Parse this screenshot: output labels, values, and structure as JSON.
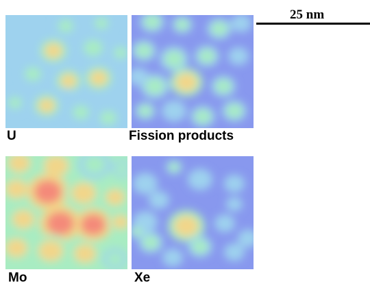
{
  "scale_bar": {
    "label": "25 nm"
  },
  "panels": [
    {
      "label": "U",
      "name": "u-map"
    },
    {
      "label": "Fission products",
      "name": "fission-products-map"
    },
    {
      "label": "Mo",
      "name": "mo-map"
    },
    {
      "label": "Xe",
      "name": "xe-map"
    }
  ],
  "colormap": [
    "#8898ee",
    "#9ed2ee",
    "#a8ecc2",
    "#f2d68a",
    "#f48a7a"
  ]
}
